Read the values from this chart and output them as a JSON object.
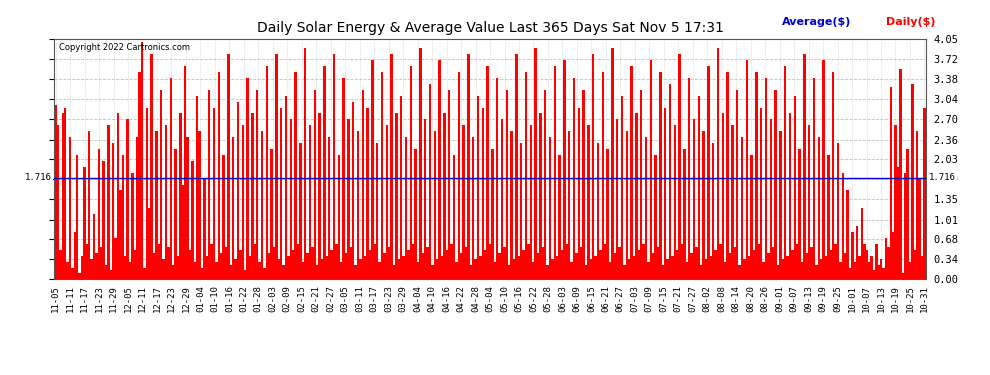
{
  "title": "Daily Solar Energy & Average Value Last 365 Days Sat Nov 5 17:31",
  "copyright": "Copyright 2022 Cartronics.com",
  "legend_avg": "Average($)",
  "legend_daily": "Daily($)",
  "avg_value": 1.716,
  "avg_label": "1.716",
  "ylim": [
    0.0,
    4.05
  ],
  "yticks": [
    0.0,
    0.34,
    0.68,
    1.01,
    1.35,
    1.69,
    2.03,
    2.36,
    2.7,
    3.04,
    3.38,
    3.72,
    4.05
  ],
  "bar_color": "#ff0000",
  "avg_line_color": "#0000cc",
  "bg_color": "#ffffff",
  "grid_color": "#bbbbbb",
  "title_color": "#000000",
  "copyright_color": "#000000",
  "x_labels": [
    "11-05",
    "11-11",
    "11-17",
    "11-23",
    "11-29",
    "12-05",
    "12-11",
    "12-17",
    "12-23",
    "12-29",
    "01-04",
    "01-10",
    "01-16",
    "01-22",
    "01-28",
    "02-03",
    "02-09",
    "02-15",
    "02-21",
    "02-27",
    "03-05",
    "03-11",
    "03-17",
    "03-23",
    "03-29",
    "04-04",
    "04-10",
    "04-16",
    "04-22",
    "04-28",
    "05-04",
    "05-10",
    "05-16",
    "05-22",
    "05-28",
    "06-03",
    "06-09",
    "06-15",
    "06-21",
    "06-27",
    "07-03",
    "07-09",
    "07-15",
    "07-21",
    "07-27",
    "08-02",
    "08-08",
    "08-14",
    "08-20",
    "08-26",
    "09-01",
    "09-07",
    "09-13",
    "09-19",
    "09-25",
    "10-01",
    "10-07",
    "10-13",
    "10-19",
    "10-25",
    "10-31"
  ],
  "values": [
    2.95,
    2.6,
    0.5,
    2.8,
    2.9,
    0.3,
    2.4,
    0.2,
    0.8,
    2.1,
    0.1,
    0.4,
    1.9,
    0.6,
    2.5,
    0.35,
    1.1,
    0.45,
    2.2,
    0.55,
    2.0,
    0.25,
    2.6,
    0.15,
    2.3,
    0.7,
    2.8,
    1.5,
    2.1,
    0.4,
    2.7,
    0.3,
    1.8,
    0.5,
    2.4,
    3.5,
    4.0,
    0.2,
    2.9,
    1.2,
    3.8,
    0.45,
    2.5,
    0.6,
    3.2,
    0.35,
    2.6,
    0.55,
    3.4,
    0.25,
    2.2,
    0.4,
    2.8,
    1.6,
    3.6,
    2.4,
    0.5,
    2.0,
    0.3,
    3.1,
    2.5,
    0.2,
    1.7,
    0.4,
    3.2,
    0.6,
    2.9,
    0.3,
    3.5,
    0.45,
    2.1,
    0.55,
    3.8,
    0.25,
    2.4,
    0.35,
    3.0,
    0.5,
    2.6,
    0.15,
    3.4,
    0.4,
    2.8,
    0.6,
    3.2,
    0.3,
    2.5,
    0.2,
    3.6,
    0.45,
    2.2,
    0.55,
    3.8,
    0.35,
    2.9,
    0.25,
    3.1,
    0.4,
    2.7,
    0.5,
    3.5,
    0.6,
    2.3,
    0.3,
    3.9,
    0.45,
    2.6,
    0.55,
    3.2,
    0.25,
    2.8,
    0.35,
    3.6,
    0.4,
    2.4,
    0.5,
    3.8,
    0.6,
    2.1,
    0.3,
    3.4,
    0.45,
    2.7,
    0.55,
    3.0,
    0.25,
    2.5,
    0.35,
    3.2,
    0.4,
    2.9,
    0.5,
    3.7,
    0.6,
    2.3,
    0.3,
    3.5,
    0.45,
    2.6,
    0.55,
    3.8,
    0.25,
    2.8,
    0.35,
    3.1,
    0.4,
    2.4,
    0.5,
    3.6,
    0.6,
    2.2,
    0.3,
    3.9,
    0.45,
    2.7,
    0.55,
    3.3,
    0.25,
    2.5,
    0.35,
    3.7,
    0.4,
    2.8,
    0.5,
    3.2,
    0.6,
    2.1,
    0.3,
    3.5,
    0.45,
    2.6,
    0.55,
    3.8,
    0.25,
    2.4,
    0.35,
    3.1,
    0.4,
    2.9,
    0.5,
    3.6,
    0.6,
    2.2,
    0.3,
    3.4,
    0.45,
    2.7,
    0.55,
    3.2,
    0.25,
    2.5,
    0.35,
    3.8,
    0.4,
    2.3,
    0.5,
    3.5,
    0.6,
    2.6,
    0.3,
    3.9,
    0.45,
    2.8,
    0.55,
    3.2,
    0.25,
    2.4,
    0.35,
    3.6,
    0.4,
    2.1,
    0.5,
    3.7,
    0.6,
    2.5,
    0.3,
    3.4,
    0.45,
    2.9,
    0.55,
    3.2,
    0.25,
    2.6,
    0.35,
    3.8,
    0.4,
    2.3,
    0.5,
    3.5,
    0.6,
    2.2,
    0.3,
    3.9,
    0.45,
    2.7,
    0.55,
    3.1,
    0.25,
    2.5,
    0.35,
    3.6,
    0.4,
    2.8,
    0.5,
    3.2,
    0.6,
    2.4,
    0.3,
    3.7,
    0.45,
    2.1,
    0.55,
    3.5,
    0.25,
    2.9,
    0.35,
    3.3,
    0.4,
    2.6,
    0.5,
    3.8,
    0.6,
    2.2,
    0.3,
    3.4,
    0.45,
    2.7,
    0.55,
    3.1,
    0.25,
    2.5,
    0.35,
    3.6,
    0.4,
    2.3,
    0.5,
    3.9,
    0.6,
    2.8,
    0.3,
    3.5,
    0.45,
    2.6,
    0.55,
    3.2,
    0.25,
    2.4,
    0.35,
    3.7,
    0.4,
    2.1,
    0.5,
    3.5,
    0.6,
    2.9,
    0.3,
    3.4,
    0.45,
    2.7,
    0.55,
    3.2,
    0.25,
    2.5,
    0.35,
    3.6,
    0.4,
    2.8,
    0.5,
    3.1,
    0.6,
    2.2,
    0.3,
    3.8,
    0.45,
    2.6,
    0.55,
    3.4,
    0.25,
    2.4,
    0.35,
    3.7,
    0.4,
    2.1,
    0.5,
    3.5,
    0.6,
    2.3,
    0.3,
    1.8,
    0.45,
    1.5,
    0.2,
    0.8,
    0.3,
    0.9,
    0.4,
    1.2,
    0.6,
    0.5,
    0.3,
    0.4,
    0.15,
    0.6,
    0.25,
    0.35,
    0.2,
    0.7,
    0.55,
    3.25,
    0.8,
    2.6,
    1.9,
    3.55,
    0.1,
    1.8,
    2.2,
    0.3,
    3.3,
    0.5,
    2.5,
    1.7,
    0.4,
    2.9
  ]
}
